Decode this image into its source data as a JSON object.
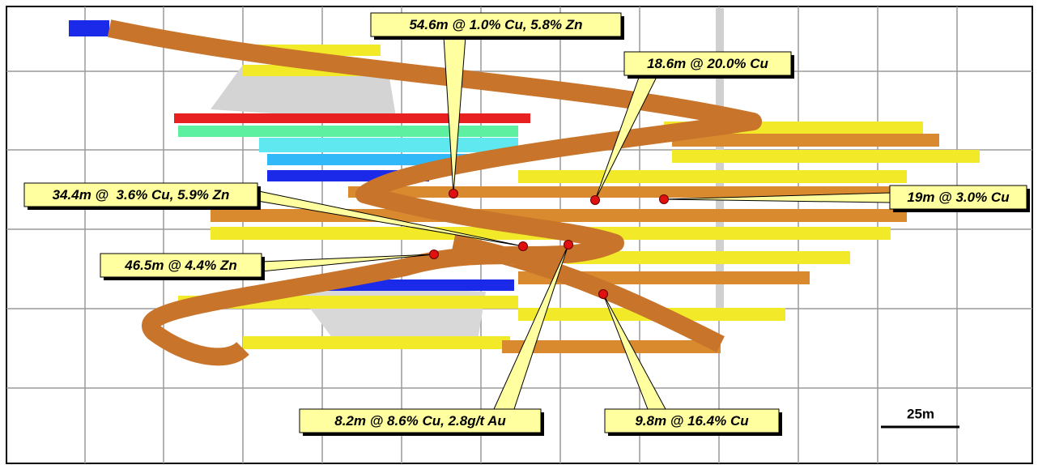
{
  "callouts": [
    {
      "label": "54.6m @ 1.0% Cu, 5.8% Zn"
    },
    {
      "label": "18.6m @ 20.0% Cu"
    },
    {
      "label": "19m @ 3.0% Cu"
    },
    {
      "label": "34.4m @  3.6% Cu, 5.9% Zn"
    },
    {
      "label": "46.5m @ 4.4% Zn"
    },
    {
      "label": "8.2m @ 8.6% Cu, 2.8g/t Au"
    },
    {
      "label": "9.8m @ 16.4% Cu"
    }
  ],
  "scale_bar": {
    "label": "25m"
  }
}
